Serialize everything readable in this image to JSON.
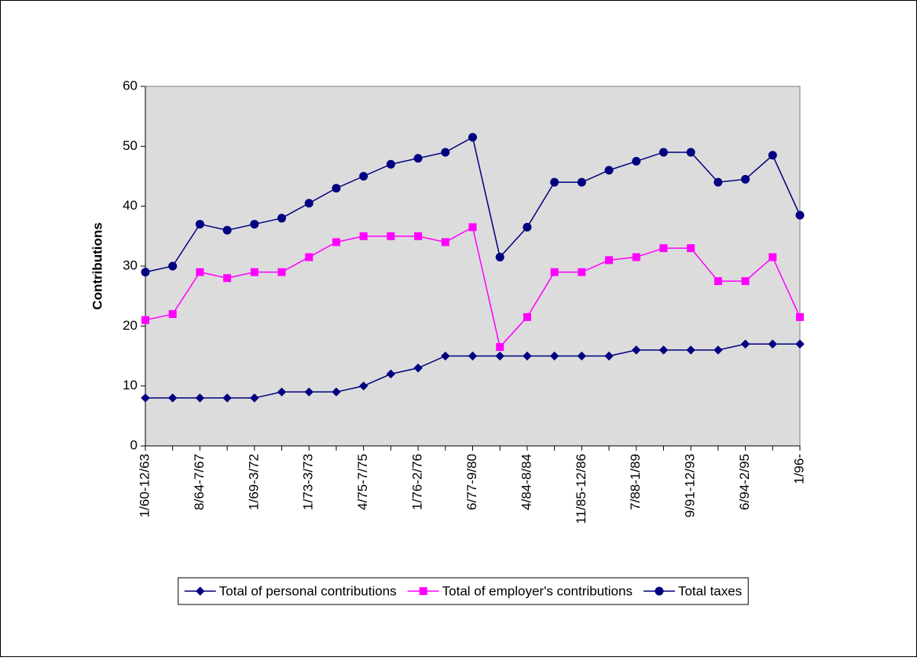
{
  "chart_data": {
    "type": "line",
    "y_label": "Contributions",
    "categories": [
      "1/60-12/63",
      null,
      "8/64-7/67",
      null,
      "1/69-3/72",
      null,
      "1/73-3/73",
      null,
      "4/75-7/75",
      null,
      "1/76-2/76",
      null,
      "6/77-9/80",
      null,
      "4/84-8/84",
      null,
      "11/85-12/86",
      null,
      "7/88-1/89",
      null,
      "9/91-12/93",
      null,
      "6/94-2/95",
      null,
      "1/96-"
    ],
    "series": [
      {
        "name": "Total of personal contributions",
        "color": "#000080",
        "marker": "diamond",
        "values": [
          8,
          8,
          8,
          8,
          8,
          9,
          9,
          9,
          10,
          12,
          13,
          15,
          15,
          15,
          15,
          15,
          15,
          15,
          16,
          16,
          16,
          16,
          17,
          17,
          17
        ]
      },
      {
        "name": "Total of employer's contributions",
        "color": "#ff00ff",
        "marker": "square",
        "values": [
          21,
          22,
          29,
          28,
          29,
          29,
          31.5,
          34,
          35,
          35,
          35,
          34,
          36.5,
          16.5,
          21.5,
          29,
          29,
          31,
          31.5,
          33,
          33,
          27.5,
          27.5,
          31.5,
          21.5
        ]
      },
      {
        "name": "Total taxes",
        "color": "#000080",
        "marker": "circle",
        "values": [
          29,
          30,
          37,
          36,
          37,
          38,
          40.5,
          43,
          45,
          47,
          48,
          49,
          51.5,
          31.5,
          36.5,
          44,
          44,
          46,
          47.5,
          49,
          49,
          44,
          44.5,
          48.5,
          38.5
        ]
      }
    ],
    "ylim": [
      0,
      60
    ],
    "yticks": [
      0,
      10,
      20,
      30,
      40,
      50,
      60
    ],
    "plot_background": "#dcdcdc",
    "legend": "bottom"
  }
}
